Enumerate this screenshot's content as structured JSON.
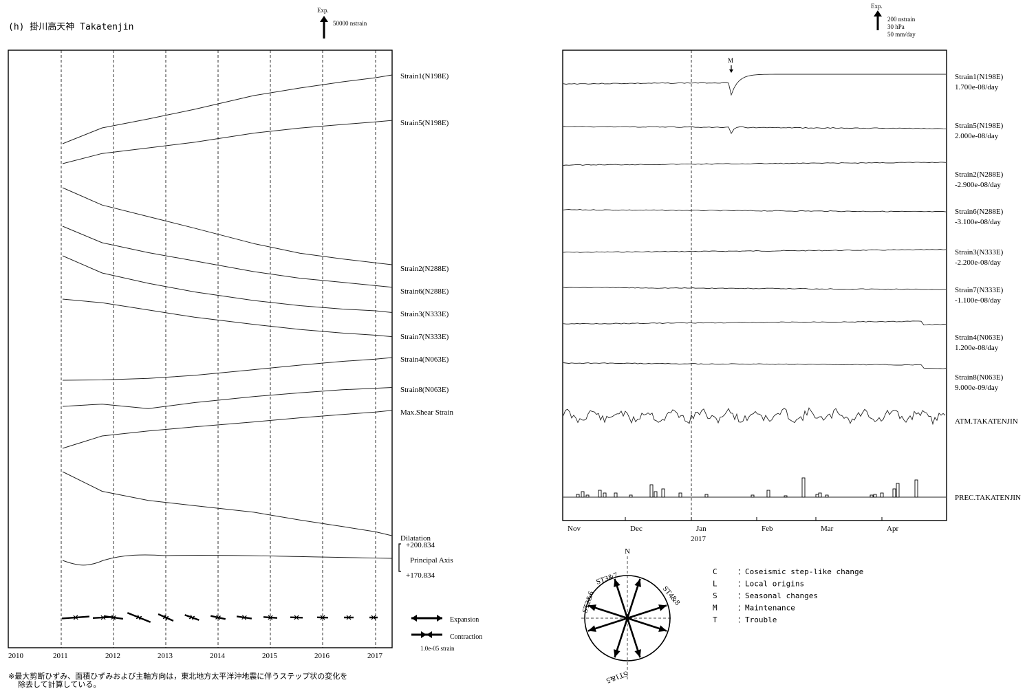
{
  "header": {
    "station_title": "(h) 掛川高天神 Takatenjin",
    "left_scale": {
      "label": "Exp.",
      "value": "50000 nstrain"
    },
    "right_scale": {
      "label": "Exp.",
      "lines": [
        "200 nstrain",
        "30 hPa",
        "50 mm/day"
      ]
    }
  },
  "footnote": {
    "line1": "※最大剪断ひずみ、面積ひずみおよび主軸方向は，東北地方太平洋沖地震に伴うステップ状の変化を",
    "line2": "除去して計算している。"
  },
  "legend": {
    "expansion": "Expansion",
    "contraction": "Contraction",
    "scale": "1.0e-05 strain"
  },
  "compass": {
    "north": "N",
    "labels": [
      "ST2&6",
      "ST3&7",
      "ST4&8",
      "ST1&5"
    ]
  },
  "codes": [
    {
      "code": "C",
      "desc": "：Coseismic step-like change"
    },
    {
      "code": "L",
      "desc": "：Local origins"
    },
    {
      "code": "S",
      "desc": "：Seasonal changes"
    },
    {
      "code": "M",
      "desc": "：Maintenance"
    },
    {
      "code": "T",
      "desc": "：Trouble"
    }
  ],
  "chart_data": [
    {
      "type": "line",
      "x_ticks": [
        "2010",
        "2011",
        "2012",
        "2013",
        "2014",
        "2015",
        "2016",
        "2017"
      ],
      "grid": "vertical dashed yearly",
      "series": [
        {
          "name": "Strain1(N198E)",
          "values": [
            0,
            0.23,
            0.36,
            0.5,
            0.7,
            0.81,
            0.9,
            0.96,
            1.0
          ]
        },
        {
          "name": "Strain5(N198E)",
          "values": [
            0,
            0.2,
            0.31,
            0.42,
            0.6,
            0.7,
            0.77,
            0.82,
            0.85
          ]
        },
        {
          "name": "Strain2(N288E)",
          "values": [
            0,
            -0.18,
            -0.3,
            -0.42,
            -0.58,
            -0.68,
            -0.74,
            -0.78,
            -0.8
          ]
        },
        {
          "name": "Strain6(N288E)",
          "values": [
            0,
            -0.2,
            -0.32,
            -0.42,
            -0.55,
            -0.63,
            -0.68,
            -0.72,
            -0.74
          ]
        },
        {
          "name": "Strain3(N333E)",
          "values": [
            0,
            -0.2,
            -0.32,
            -0.42,
            -0.52,
            -0.58,
            -0.62,
            -0.64,
            -0.66
          ]
        },
        {
          "name": "Strain7(N333E)",
          "values": [
            0,
            -0.05,
            -0.15,
            -0.25,
            -0.35,
            -0.42,
            -0.47,
            -0.5,
            -0.52
          ]
        },
        {
          "name": "Strain4(N063E)",
          "values": [
            0,
            0.01,
            0.05,
            0.13,
            0.28,
            0.4,
            0.5,
            0.56,
            0.6
          ]
        },
        {
          "name": "Strain8(N063E)",
          "values": [
            0,
            0.03,
            -0.03,
            0.05,
            0.13,
            0.18,
            0.22,
            0.24,
            0.25
          ]
        },
        {
          "name": "Max.Shear Strain",
          "values": [
            0,
            0.3,
            0.42,
            0.52,
            0.64,
            0.74,
            0.82,
            0.88,
            0.92
          ]
        },
        {
          "name": "Dilatation",
          "values": [
            0,
            -0.3,
            -0.44,
            -0.52,
            -0.62,
            -0.74,
            -0.84,
            -0.92,
            -0.98
          ]
        }
      ],
      "principal_axis": {
        "label": "Principal Axis",
        "top": "+200.834",
        "bottom": "+170.834"
      }
    },
    {
      "type": "line",
      "x_ticks": [
        "Nov",
        "Dec",
        "Jan",
        "Feb",
        "Mar",
        "Apr"
      ],
      "x_year_label": "2017",
      "annotation": "M",
      "series": [
        {
          "name": "Strain1(N198E)",
          "rate": "1.700e-08/day"
        },
        {
          "name": "Strain5(N198E)",
          "rate": "2.000e-08/day"
        },
        {
          "name": "Strain2(N288E)",
          "rate": "-2.900e-08/day"
        },
        {
          "name": "Strain6(N288E)",
          "rate": "-3.100e-08/day"
        },
        {
          "name": "Strain3(N333E)",
          "rate": "-2.200e-08/day"
        },
        {
          "name": "Strain7(N333E)",
          "rate": "-1.100e-08/day"
        },
        {
          "name": "Strain4(N063E)",
          "rate": "1.200e-08/day"
        },
        {
          "name": "Strain8(N063E)",
          "rate": "9.000e-09/day"
        },
        {
          "name": "ATM.TAKATENJIN",
          "rate": ""
        },
        {
          "name": "PREC.TAKATENJIN",
          "rate": ""
        }
      ]
    }
  ]
}
